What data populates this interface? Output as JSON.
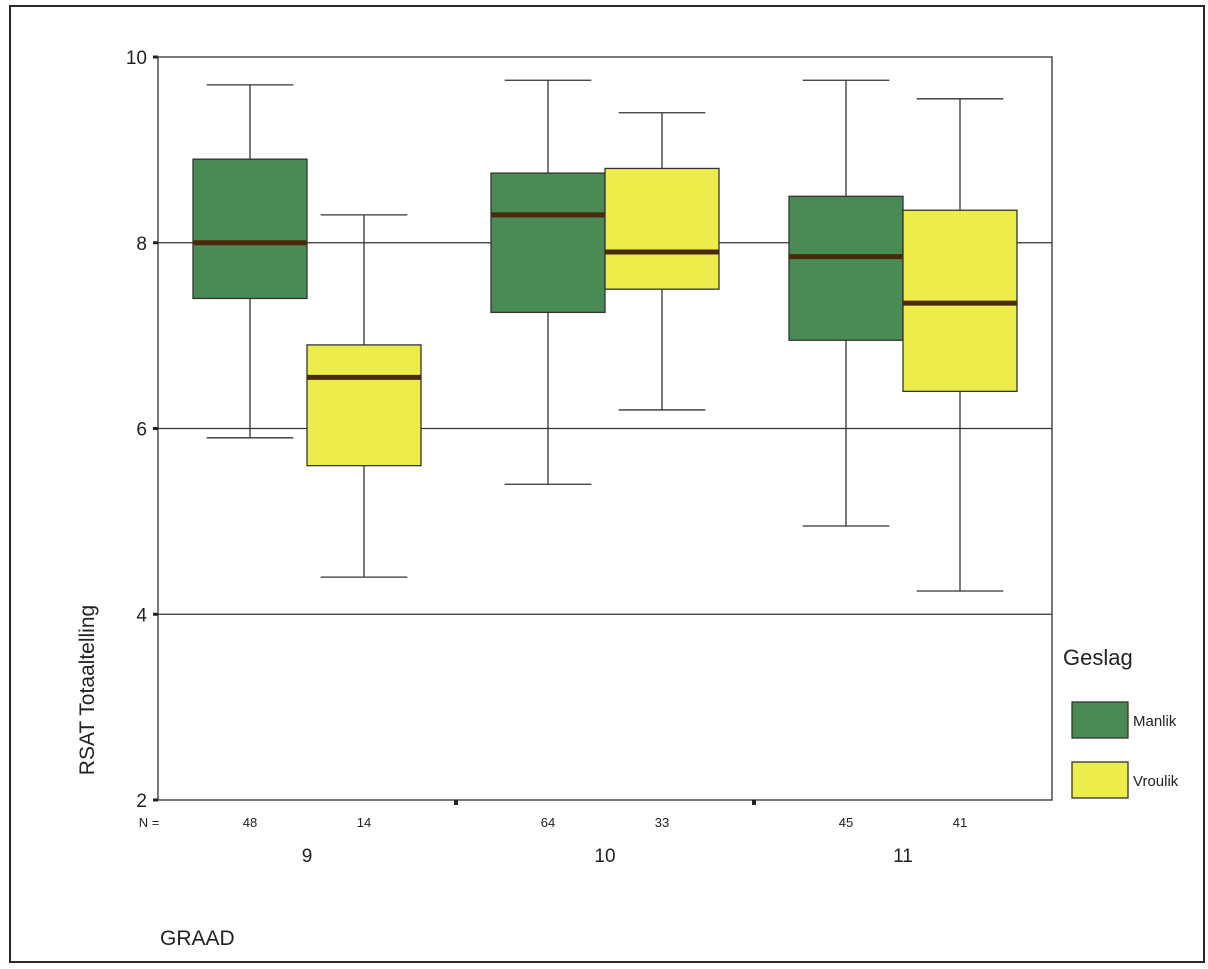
{
  "chart_data": {
    "type": "boxplot",
    "xlabel": "GRAAD",
    "ylabel": "RSAT Totaaltelling",
    "ylim": [
      2,
      10
    ],
    "yticks": [
      2,
      4,
      6,
      8,
      10
    ],
    "grid_y": [
      4,
      6,
      8
    ],
    "categories": [
      "9",
      "10",
      "11"
    ],
    "n_prefix": "N =",
    "legend": {
      "title": "Geslag",
      "placement": "right"
    },
    "series": [
      {
        "name": "Manlik",
        "color": "#4a8a55",
        "n": [
          48,
          64,
          45
        ],
        "boxes": [
          {
            "min": 5.9,
            "q1": 7.4,
            "median": 8.0,
            "q3": 8.9,
            "max": 9.7
          },
          {
            "min": 5.4,
            "q1": 7.25,
            "median": 8.3,
            "q3": 8.75,
            "max": 9.75
          },
          {
            "min": 4.95,
            "q1": 6.95,
            "median": 7.85,
            "q3": 8.5,
            "max": 9.75
          }
        ]
      },
      {
        "name": "Vroulik",
        "color": "#ecec4a",
        "n": [
          14,
          33,
          41
        ],
        "boxes": [
          {
            "min": 4.4,
            "q1": 5.6,
            "median": 6.55,
            "q3": 6.9,
            "max": 8.3
          },
          {
            "min": 6.2,
            "q1": 7.5,
            "median": 7.9,
            "q3": 8.8,
            "max": 9.4
          },
          {
            "min": 4.25,
            "q1": 6.4,
            "median": 7.35,
            "q3": 8.35,
            "max": 9.55
          }
        ]
      }
    ]
  }
}
